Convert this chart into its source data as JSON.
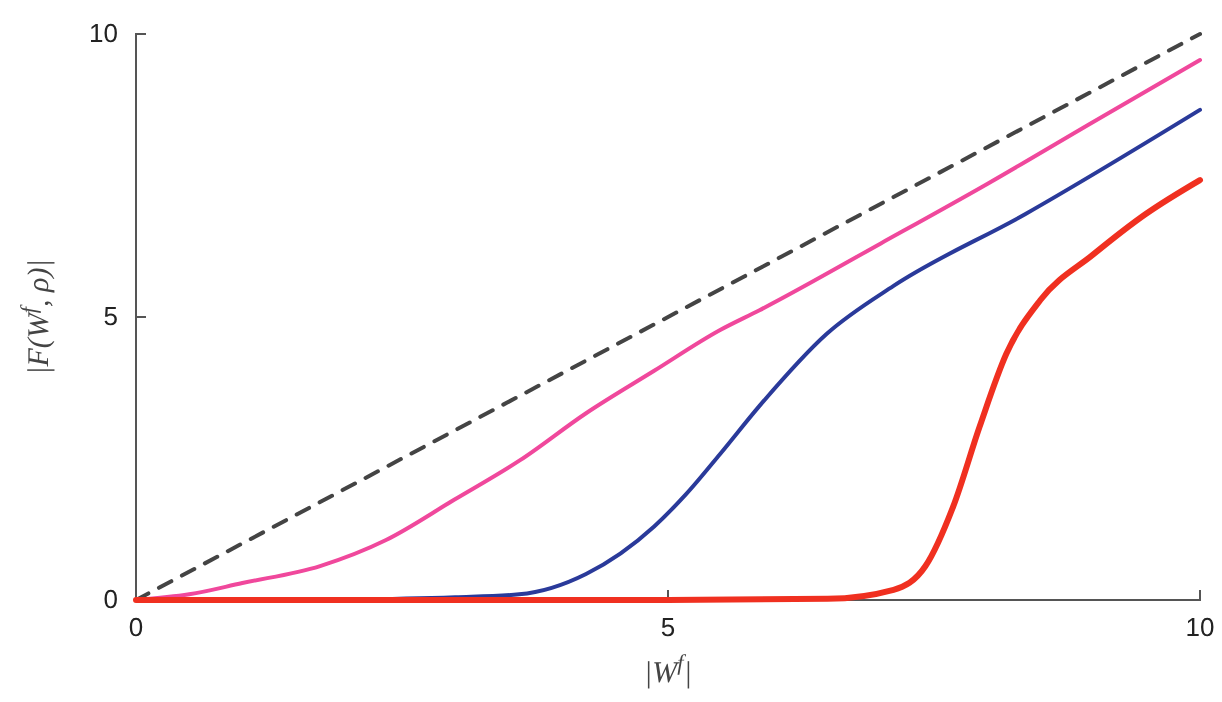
{
  "chart_data": {
    "type": "line",
    "xlabel": "|W$^{f}$|",
    "ylabel": "|F(W$^{f}$, ρ)|",
    "xlim": [
      0,
      10
    ],
    "ylim": [
      0,
      10
    ],
    "xticks": [
      0,
      5,
      10
    ],
    "yticks": [
      0,
      5,
      10
    ],
    "series": [
      {
        "color": "#444444",
        "line_style": "dashed",
        "x": [
          0,
          10
        ],
        "values": [
          0,
          10
        ]
      },
      {
        "color": "#f0489c",
        "x": [
          0,
          0.5,
          1,
          1.73,
          2.35,
          2.99,
          3.61,
          4.23,
          4.87,
          5.49,
          5.86,
          7,
          8,
          9,
          10
        ],
        "values": [
          0,
          0.1,
          0.3,
          0.6,
          1.06,
          1.77,
          2.47,
          3.3,
          4.05,
          4.77,
          5.12,
          6.3,
          7.35,
          8.45,
          9.54
        ]
      },
      {
        "color": "#2a3a9a",
        "x": [
          0,
          1,
          2,
          3,
          3.6,
          4.23,
          4.87,
          5.17,
          5.49,
          5.86,
          6.49,
          7.12,
          8.36,
          10
        ],
        "values": [
          0,
          0,
          0.01,
          0.05,
          0.1,
          0.46,
          1.3,
          1.87,
          2.58,
          3.43,
          4.7,
          5.55,
          6.82,
          8.66
        ]
      },
      {
        "color": "#f03020",
        "x": [
          0,
          5,
          6.5,
          7.12,
          7.42,
          7.68,
          7.93,
          8.18,
          8.5,
          9,
          9.49,
          10
        ],
        "values": [
          0,
          0,
          0.02,
          0.18,
          0.6,
          1.65,
          3.07,
          4.35,
          5.3,
          6.11,
          6.82,
          7.42
        ]
      }
    ]
  }
}
